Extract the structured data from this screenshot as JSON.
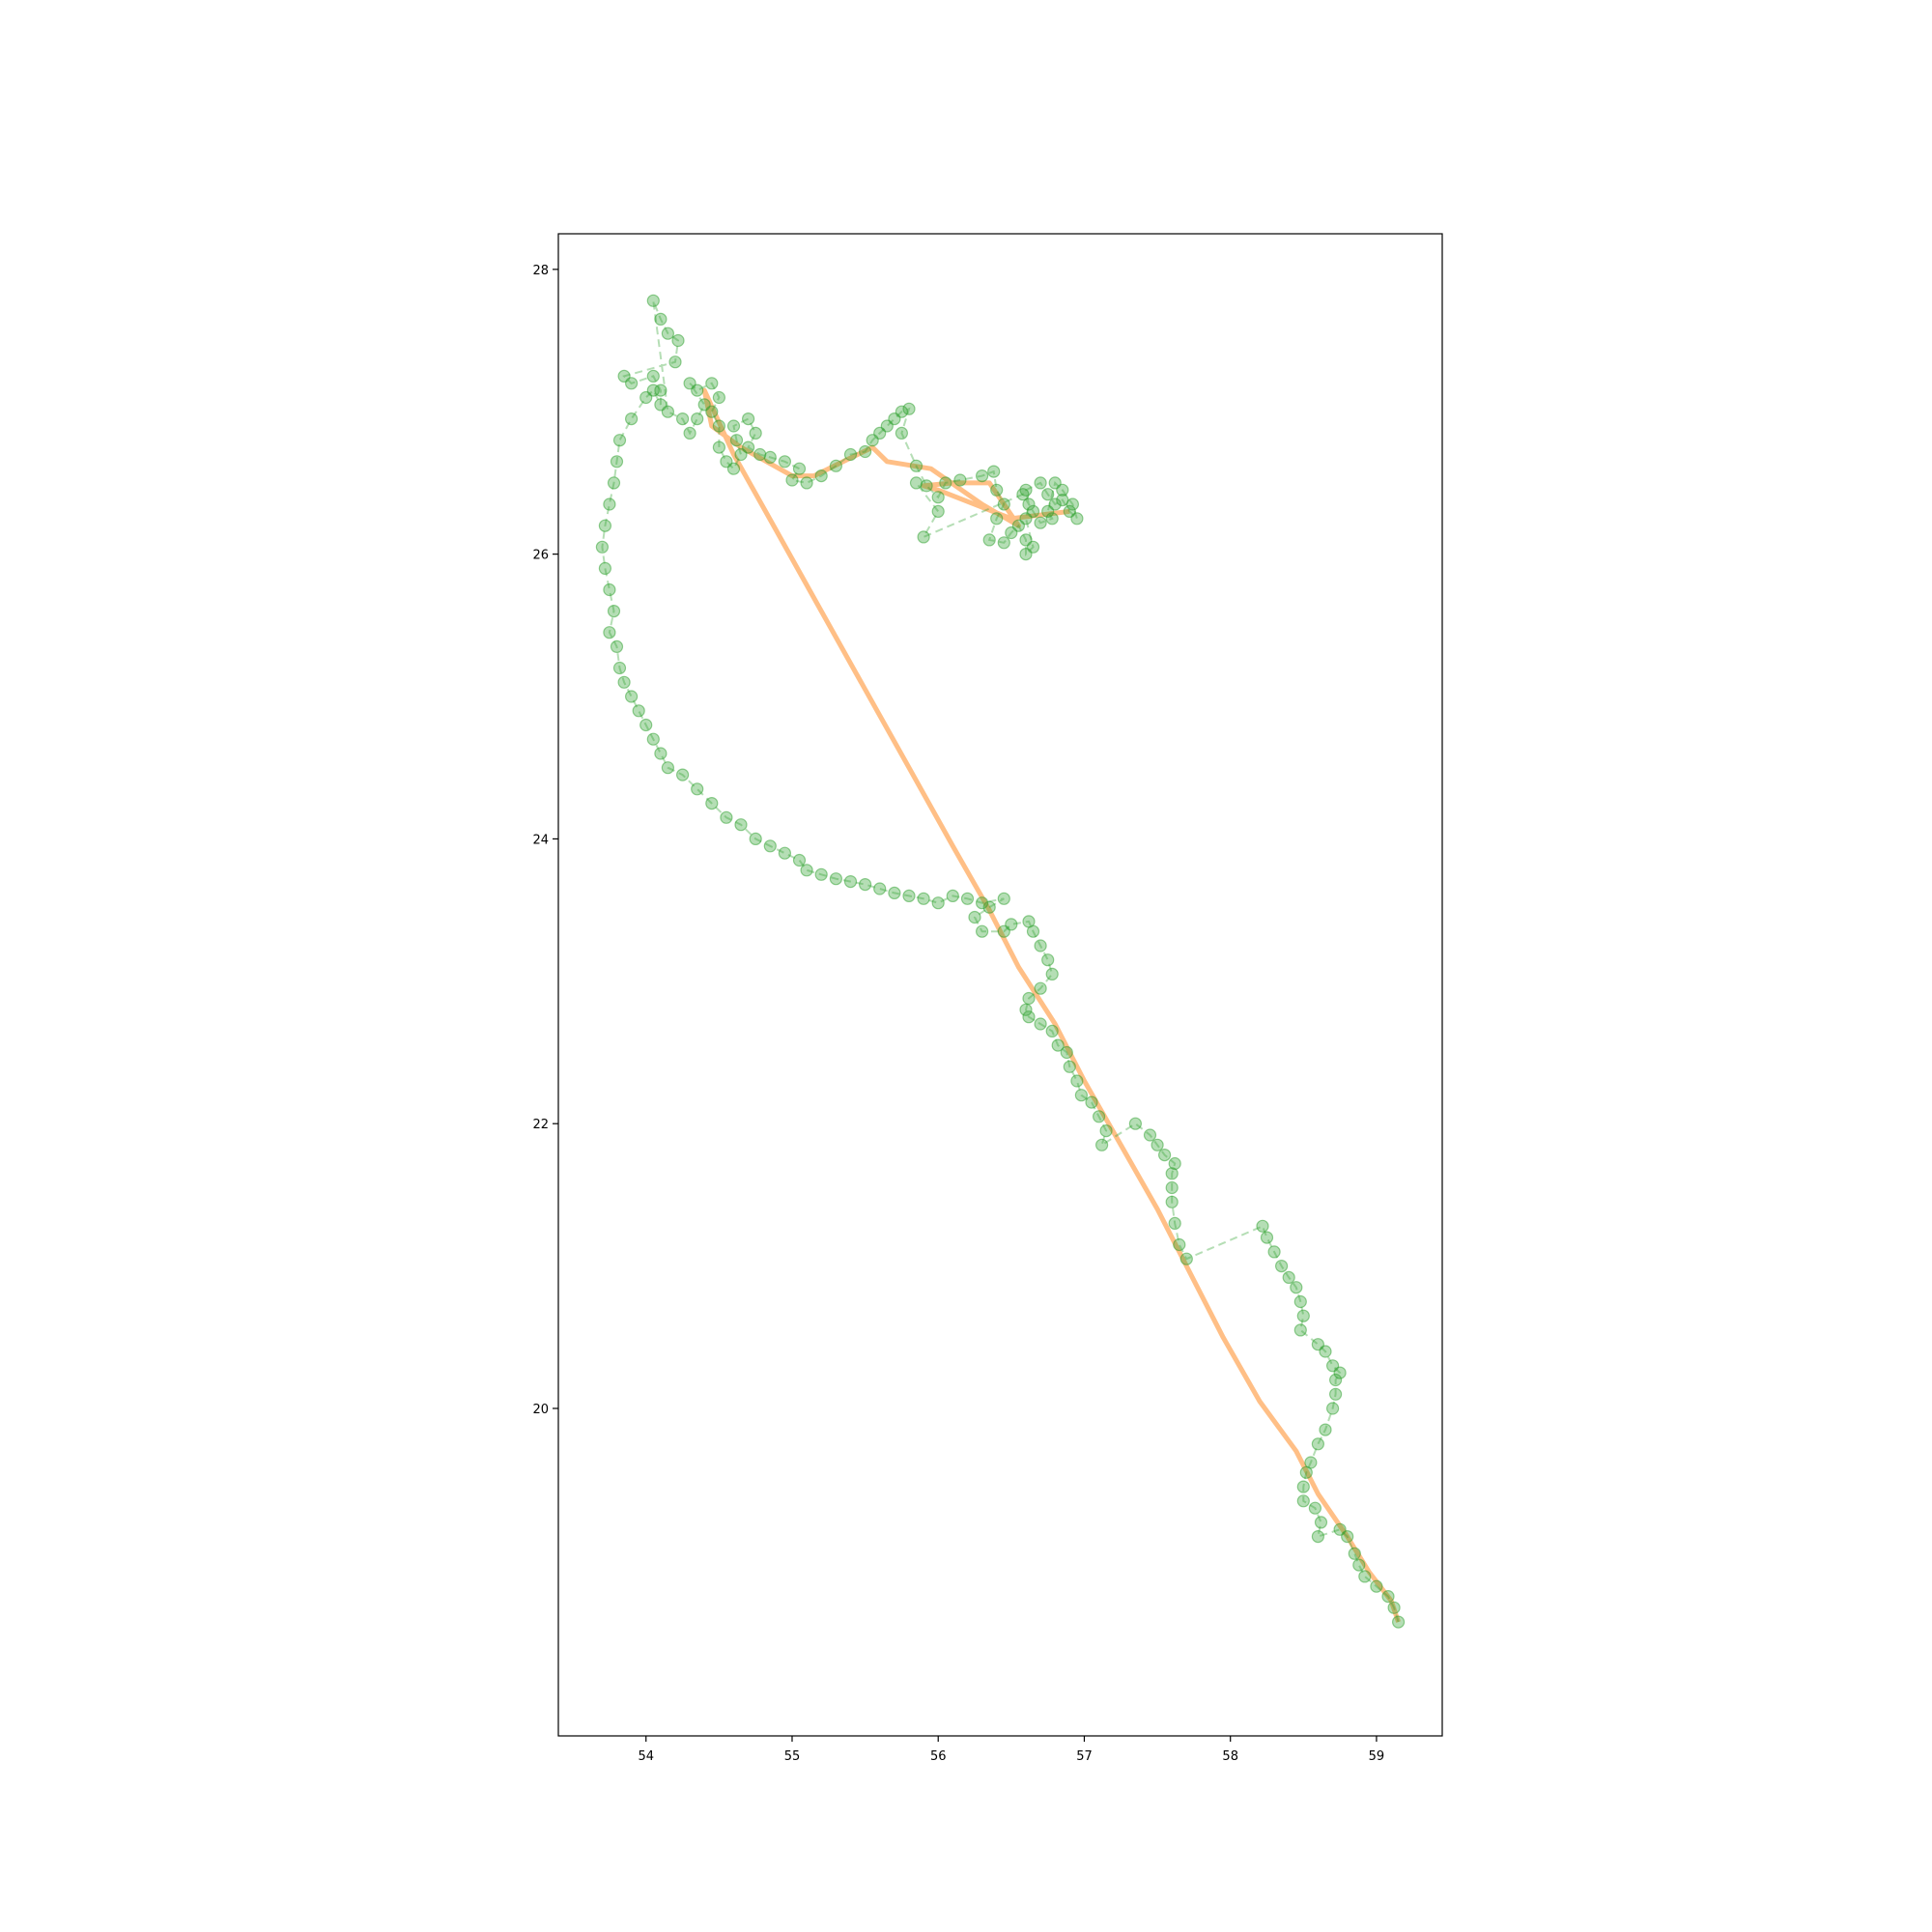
{
  "chart_data": {
    "type": "scatter",
    "title": "",
    "xlabel": "",
    "ylabel": "",
    "xlim": [
      53.4,
      59.45
    ],
    "ylim": [
      17.7,
      28.25
    ],
    "x_ticks": [
      54,
      55,
      56,
      57,
      58,
      59
    ],
    "y_ticks": [
      20,
      22,
      24,
      26,
      28
    ],
    "grid": false,
    "legend": "none",
    "colors": {
      "track": "#2ca02c",
      "route": "#ff7f0e"
    },
    "series": [
      {
        "kind": "line",
        "style": "solid",
        "points": [
          [
            59.15,
            18.5
          ],
          [
            59.1,
            18.65
          ],
          [
            58.95,
            18.85
          ],
          [
            58.8,
            19.1
          ],
          [
            58.6,
            19.4
          ],
          [
            58.45,
            19.7
          ],
          [
            58.2,
            20.05
          ],
          [
            57.95,
            20.5
          ],
          [
            57.7,
            21.0
          ],
          [
            57.5,
            21.4
          ],
          [
            57.25,
            21.85
          ],
          [
            57.0,
            22.3
          ],
          [
            56.8,
            22.7
          ],
          [
            56.55,
            23.1
          ],
          [
            56.35,
            23.5
          ],
          [
            56.1,
            23.95
          ],
          [
            55.8,
            24.5
          ],
          [
            55.5,
            25.05
          ],
          [
            55.2,
            25.6
          ],
          [
            54.9,
            26.15
          ],
          [
            54.6,
            26.7
          ],
          [
            54.4,
            27.15
          ],
          [
            54.45,
            26.9
          ],
          [
            54.65,
            26.75
          ],
          [
            55.0,
            26.55
          ],
          [
            55.15,
            26.55
          ],
          [
            55.35,
            26.65
          ],
          [
            55.55,
            26.75
          ],
          [
            55.65,
            26.65
          ],
          [
            55.95,
            26.6
          ],
          [
            56.3,
            26.35
          ],
          [
            56.55,
            26.2
          ],
          [
            56.35,
            26.5
          ],
          [
            56.1,
            26.5
          ],
          [
            55.9,
            26.48
          ],
          [
            56.0,
            26.45
          ],
          [
            56.5,
            26.25
          ],
          [
            56.9,
            26.3
          ]
        ]
      },
      {
        "kind": "scatter",
        "style": "dashed",
        "points": [
          [
            59.15,
            18.5
          ],
          [
            59.12,
            18.6
          ],
          [
            59.08,
            18.68
          ],
          [
            59.0,
            18.75
          ],
          [
            58.92,
            18.82
          ],
          [
            58.88,
            18.9
          ],
          [
            58.85,
            18.98
          ],
          [
            58.8,
            19.1
          ],
          [
            58.75,
            19.15
          ],
          [
            58.6,
            19.1
          ],
          [
            58.62,
            19.2
          ],
          [
            58.58,
            19.3
          ],
          [
            58.5,
            19.35
          ],
          [
            58.5,
            19.45
          ],
          [
            58.52,
            19.55
          ],
          [
            58.55,
            19.62
          ],
          [
            58.6,
            19.75
          ],
          [
            58.65,
            19.85
          ],
          [
            58.7,
            20.0
          ],
          [
            58.72,
            20.1
          ],
          [
            58.72,
            20.2
          ],
          [
            58.75,
            20.25
          ],
          [
            58.7,
            20.3
          ],
          [
            58.65,
            20.4
          ],
          [
            58.6,
            20.45
          ],
          [
            58.48,
            20.55
          ],
          [
            58.5,
            20.65
          ],
          [
            58.48,
            20.75
          ],
          [
            58.45,
            20.85
          ],
          [
            58.4,
            20.92
          ],
          [
            58.35,
            21.0
          ],
          [
            58.3,
            21.1
          ],
          [
            58.25,
            21.2
          ],
          [
            58.22,
            21.28
          ],
          [
            57.7,
            21.05
          ],
          [
            57.65,
            21.15
          ],
          [
            57.62,
            21.3
          ],
          [
            57.6,
            21.45
          ],
          [
            57.6,
            21.55
          ],
          [
            57.6,
            21.65
          ],
          [
            57.62,
            21.72
          ],
          [
            57.55,
            21.78
          ],
          [
            57.5,
            21.85
          ],
          [
            57.45,
            21.92
          ],
          [
            57.35,
            22.0
          ],
          [
            57.12,
            21.85
          ],
          [
            57.15,
            21.95
          ],
          [
            57.1,
            22.05
          ],
          [
            57.05,
            22.15
          ],
          [
            56.98,
            22.2
          ],
          [
            56.95,
            22.3
          ],
          [
            56.9,
            22.4
          ],
          [
            56.88,
            22.5
          ],
          [
            56.82,
            22.55
          ],
          [
            56.78,
            22.65
          ],
          [
            56.7,
            22.7
          ],
          [
            56.62,
            22.75
          ],
          [
            56.6,
            22.8
          ],
          [
            56.62,
            22.88
          ],
          [
            56.7,
            22.95
          ],
          [
            56.78,
            23.05
          ],
          [
            56.75,
            23.15
          ],
          [
            56.7,
            23.25
          ],
          [
            56.65,
            23.35
          ],
          [
            56.62,
            23.42
          ],
          [
            56.5,
            23.4
          ],
          [
            56.45,
            23.35
          ],
          [
            56.3,
            23.35
          ],
          [
            56.25,
            23.45
          ],
          [
            56.35,
            23.52
          ],
          [
            56.45,
            23.58
          ],
          [
            56.3,
            23.55
          ],
          [
            56.2,
            23.58
          ],
          [
            56.1,
            23.6
          ],
          [
            56.0,
            23.55
          ],
          [
            55.9,
            23.58
          ],
          [
            55.8,
            23.6
          ],
          [
            55.7,
            23.62
          ],
          [
            55.6,
            23.65
          ],
          [
            55.5,
            23.68
          ],
          [
            55.4,
            23.7
          ],
          [
            55.3,
            23.72
          ],
          [
            55.2,
            23.75
          ],
          [
            55.1,
            23.78
          ],
          [
            55.05,
            23.85
          ],
          [
            54.95,
            23.9
          ],
          [
            54.85,
            23.95
          ],
          [
            54.75,
            24.0
          ],
          [
            54.65,
            24.1
          ],
          [
            54.55,
            24.15
          ],
          [
            54.45,
            24.25
          ],
          [
            54.35,
            24.35
          ],
          [
            54.25,
            24.45
          ],
          [
            54.15,
            24.5
          ],
          [
            54.1,
            24.6
          ],
          [
            54.05,
            24.7
          ],
          [
            54.0,
            24.8
          ],
          [
            53.95,
            24.9
          ],
          [
            53.9,
            25.0
          ],
          [
            53.85,
            25.1
          ],
          [
            53.82,
            25.2
          ],
          [
            53.8,
            25.35
          ],
          [
            53.75,
            25.45
          ],
          [
            53.78,
            25.6
          ],
          [
            53.75,
            25.75
          ],
          [
            53.72,
            25.9
          ],
          [
            53.7,
            26.05
          ],
          [
            53.72,
            26.2
          ],
          [
            53.75,
            26.35
          ],
          [
            53.78,
            26.5
          ],
          [
            53.8,
            26.65
          ],
          [
            53.82,
            26.8
          ],
          [
            53.9,
            26.95
          ],
          [
            54.0,
            27.1
          ],
          [
            54.05,
            27.15
          ],
          [
            54.1,
            27.05
          ],
          [
            54.1,
            27.15
          ],
          [
            54.05,
            27.25
          ],
          [
            53.9,
            27.2
          ],
          [
            53.85,
            27.25
          ],
          [
            54.2,
            27.35
          ],
          [
            54.22,
            27.5
          ],
          [
            54.15,
            27.55
          ],
          [
            54.1,
            27.65
          ],
          [
            54.05,
            27.78
          ],
          [
            54.15,
            27.0
          ],
          [
            54.25,
            26.95
          ],
          [
            54.3,
            26.85
          ],
          [
            54.35,
            26.95
          ],
          [
            54.4,
            27.05
          ],
          [
            54.3,
            27.2
          ],
          [
            54.35,
            27.15
          ],
          [
            54.45,
            27.2
          ],
          [
            54.5,
            27.1
          ],
          [
            54.45,
            27.0
          ],
          [
            54.5,
            26.9
          ],
          [
            54.5,
            26.75
          ],
          [
            54.55,
            26.65
          ],
          [
            54.6,
            26.6
          ],
          [
            54.65,
            26.7
          ],
          [
            54.62,
            26.8
          ],
          [
            54.6,
            26.9
          ],
          [
            54.7,
            26.95
          ],
          [
            54.75,
            26.85
          ],
          [
            54.7,
            26.75
          ],
          [
            54.78,
            26.7
          ],
          [
            54.85,
            26.68
          ],
          [
            54.95,
            26.65
          ],
          [
            55.05,
            26.6
          ],
          [
            55.0,
            26.52
          ],
          [
            55.1,
            26.5
          ],
          [
            55.2,
            26.55
          ],
          [
            55.3,
            26.62
          ],
          [
            55.4,
            26.7
          ],
          [
            55.5,
            26.72
          ],
          [
            55.55,
            26.8
          ],
          [
            55.6,
            26.85
          ],
          [
            55.65,
            26.9
          ],
          [
            55.7,
            26.95
          ],
          [
            55.75,
            27.0
          ],
          [
            55.8,
            27.02
          ],
          [
            55.75,
            26.85
          ],
          [
            55.85,
            26.62
          ],
          [
            55.92,
            26.48
          ],
          [
            56.0,
            26.4
          ],
          [
            56.05,
            26.5
          ],
          [
            56.15,
            26.52
          ],
          [
            56.3,
            26.55
          ],
          [
            56.38,
            26.58
          ],
          [
            56.4,
            26.45
          ],
          [
            56.45,
            26.35
          ],
          [
            56.4,
            26.25
          ],
          [
            56.35,
            26.1
          ],
          [
            56.45,
            26.08
          ],
          [
            56.5,
            26.15
          ],
          [
            56.55,
            26.2
          ],
          [
            56.6,
            26.1
          ],
          [
            56.6,
            26.0
          ],
          [
            56.65,
            26.05
          ],
          [
            56.6,
            26.25
          ],
          [
            56.62,
            26.35
          ],
          [
            56.6,
            26.45
          ],
          [
            56.7,
            26.5
          ],
          [
            56.75,
            26.42
          ],
          [
            56.8,
            26.35
          ],
          [
            56.85,
            26.38
          ],
          [
            56.9,
            26.3
          ],
          [
            56.95,
            26.25
          ],
          [
            56.92,
            26.35
          ],
          [
            56.85,
            26.45
          ],
          [
            56.8,
            26.5
          ],
          [
            56.75,
            26.3
          ],
          [
            56.78,
            26.25
          ],
          [
            56.7,
            26.22
          ],
          [
            56.65,
            26.3
          ],
          [
            56.58,
            26.42
          ],
          [
            55.9,
            26.12
          ],
          [
            56.0,
            26.3
          ],
          [
            55.85,
            26.5
          ]
        ]
      }
    ]
  }
}
